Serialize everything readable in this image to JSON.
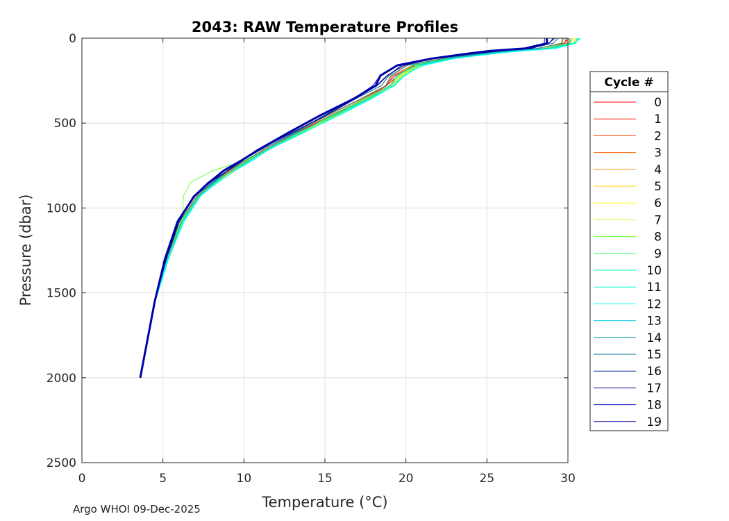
{
  "chart_data": {
    "type": "line",
    "title": "2043: RAW Temperature Profiles",
    "xlabel": "Temperature (°C)",
    "ylabel": "Pressure (dbar)",
    "xlim": [
      0,
      30
    ],
    "ylim": [
      0,
      2500
    ],
    "y_reversed": true,
    "xticks": [
      0,
      5,
      10,
      15,
      20,
      25,
      30
    ],
    "yticks": [
      0,
      500,
      1000,
      1500,
      2000,
      2500
    ],
    "grid": true,
    "legend": {
      "title": "Cycle #",
      "position": "right",
      "entries": [
        "0",
        "1",
        "2",
        "3",
        "4",
        "5",
        "6",
        "7",
        "8",
        "9",
        "10",
        "11",
        "12",
        "13",
        "14",
        "15",
        "16",
        "17",
        "18",
        "19"
      ],
      "colors": [
        "#ff0000",
        "#ff1e00",
        "#ff3c00",
        "#ff6400",
        "#f59600",
        "#ffcc00",
        "#ffff00",
        "#ccff33",
        "#66ff33",
        "#33ff66",
        "#00ff99",
        "#00ffcc",
        "#00ffff",
        "#00ccdd",
        "#0099aa",
        "#006699",
        "#003399",
        "#000088",
        "#0000cc",
        "#0000aa"
      ]
    },
    "base_profile": {
      "temperature": [
        29.5,
        29.3,
        28.0,
        26.0,
        24.5,
        22.0,
        20.0,
        19.0,
        18.5,
        17.0,
        15.0,
        13.0,
        11.0,
        10.0,
        9.0,
        8.0,
        7.0,
        6.0,
        5.2,
        4.5,
        4.0,
        3.6
      ],
      "pressure": [
        0,
        30,
        60,
        75,
        90,
        120,
        160,
        220,
        280,
        360,
        460,
        560,
        660,
        720,
        780,
        850,
        930,
        1080,
        1300,
        1550,
        1800,
        2000
      ]
    },
    "series": [
      {
        "name": "0",
        "temp_offset": 0.3,
        "t_scale": 1.01
      },
      {
        "name": "1",
        "temp_offset": 0.25,
        "t_scale": 1.01
      },
      {
        "name": "2",
        "temp_offset": 0.2,
        "t_scale": 1.01
      },
      {
        "name": "3",
        "temp_offset": 0.15,
        "t_scale": 1.0
      },
      {
        "name": "4",
        "temp_offset": 0.35,
        "t_scale": 1.01
      },
      {
        "name": "5",
        "temp_offset": 0.4,
        "t_scale": 1.02
      },
      {
        "name": "6",
        "temp_offset": 0.45,
        "t_scale": 1.02
      },
      {
        "name": "7",
        "temp_offset": 0.3,
        "t_scale": 1.02
      },
      {
        "name": "8",
        "temp_offset": 0.5,
        "t_scale": 1.02,
        "anomaly": true
      },
      {
        "name": "9",
        "temp_offset": 0.4,
        "t_scale": 1.01
      },
      {
        "name": "10",
        "temp_offset": 0.55,
        "t_scale": 1.02
      },
      {
        "name": "11",
        "temp_offset": 0.6,
        "t_scale": 1.02
      },
      {
        "name": "12",
        "temp_offset": 0.65,
        "t_scale": 1.02
      },
      {
        "name": "13",
        "temp_offset": 0.45,
        "t_scale": 1.01
      },
      {
        "name": "14",
        "temp_offset": 0.2,
        "t_scale": 1.0
      },
      {
        "name": "15",
        "temp_offset": 0.05,
        "t_scale": 0.99
      },
      {
        "name": "16",
        "temp_offset": -0.1,
        "t_scale": 0.99
      },
      {
        "name": "17",
        "temp_offset": -0.05,
        "t_scale": 0.99
      },
      {
        "name": "18",
        "temp_offset": -0.2,
        "t_scale": 0.98
      },
      {
        "name": "19",
        "temp_offset": -0.15,
        "t_scale": 0.98,
        "bold": true
      }
    ]
  },
  "footer": "Argo WHOI 09-Dec-2025"
}
